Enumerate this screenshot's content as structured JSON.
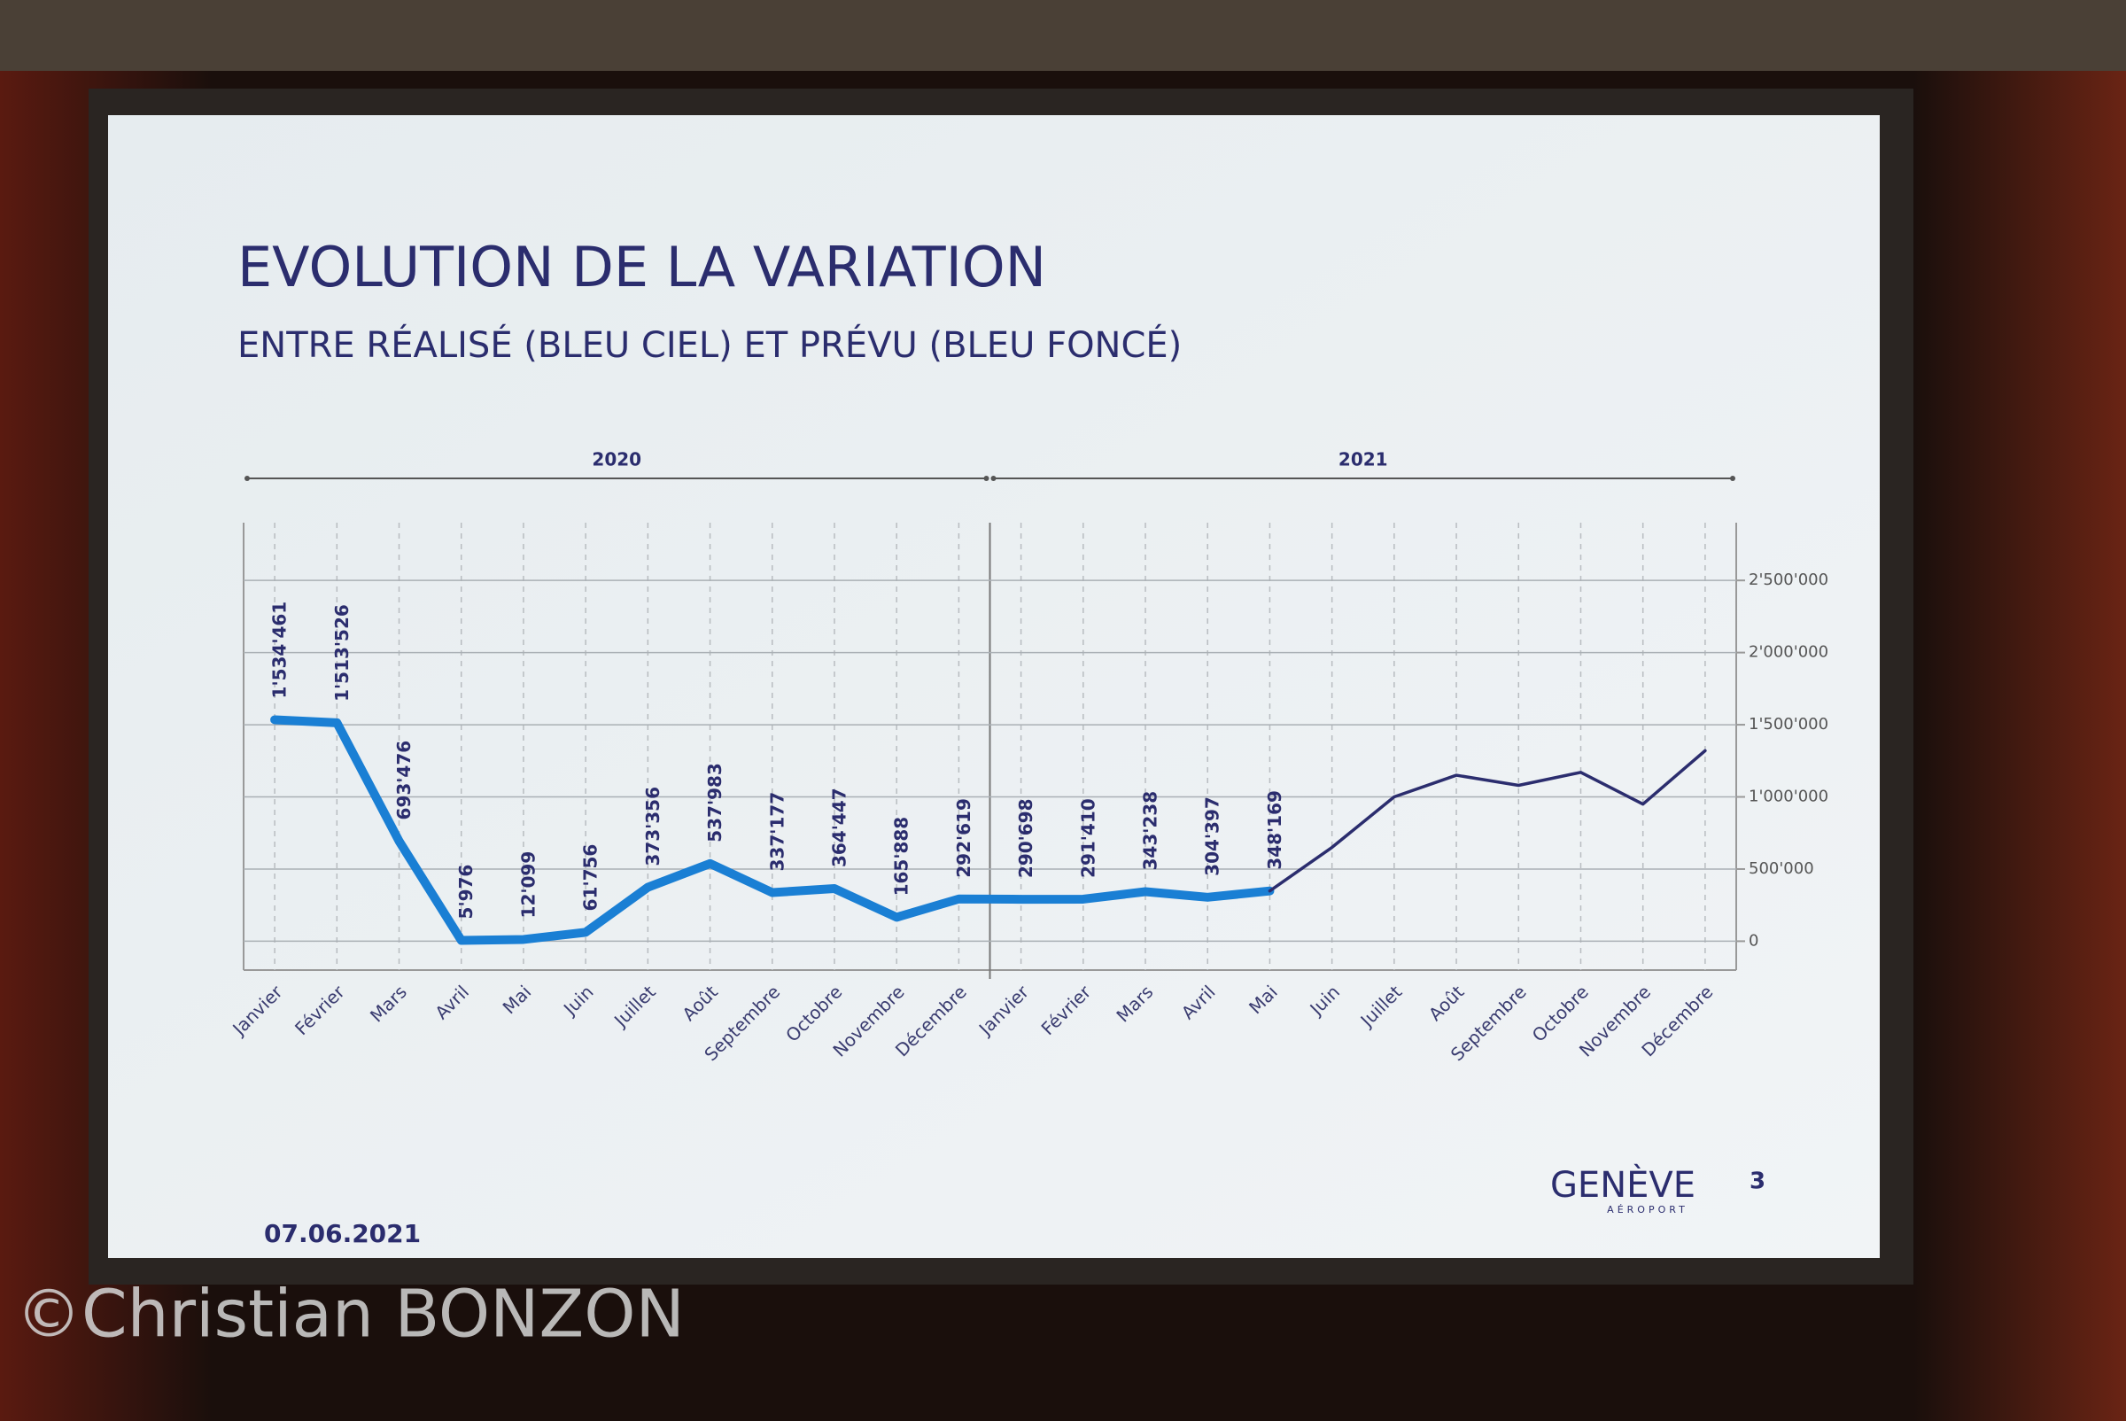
{
  "slide": {
    "title": "EVOLUTION DE LA VARIATION",
    "subtitle": "ENTRE RÉALISÉ (BLEU CIEL) ET PRÉVU (BLEU FONCÉ)",
    "date": "07.06.2021",
    "page_number": "3",
    "logo": "GENÈVE",
    "logo_sub": "AÉROPORT"
  },
  "watermark": "©Christian BONZON",
  "chart_data": {
    "type": "line",
    "period_labels": [
      "2020",
      "2021"
    ],
    "categories": [
      "Janvier",
      "Février",
      "Mars",
      "Avril",
      "Mai",
      "Juin",
      "Juillet",
      "Août",
      "Septembre",
      "Octobre",
      "Novembre",
      "Décembre",
      "Janvier",
      "Février",
      "Mars",
      "Avril",
      "Mai",
      "Juin",
      "Juillet",
      "Août",
      "Septembre",
      "Octobre",
      "Novembre",
      "Décembre"
    ],
    "series": [
      {
        "color": "#1a7fd4",
        "values": [
          1534461,
          1513526,
          693476,
          5976,
          12099,
          61756,
          373356,
          537983,
          337177,
          364447,
          165888,
          292619,
          290698,
          291410,
          343238,
          304397,
          348169,
          null,
          null,
          null,
          null,
          null,
          null,
          null
        ],
        "value_labels": [
          "1'534'461",
          "1'513'526",
          "693'476",
          "5'976",
          "12'099",
          "61'756",
          "373'356",
          "537'983",
          "337'177",
          "364'447",
          "165'888",
          "292'619",
          "290'698",
          "291'410",
          "343'238",
          "304'397",
          "348'169",
          null,
          null,
          null,
          null,
          null,
          null,
          null
        ]
      },
      {
        "color": "#2b2d6e",
        "values": [
          null,
          null,
          null,
          null,
          null,
          null,
          null,
          null,
          null,
          null,
          null,
          null,
          null,
          null,
          null,
          null,
          348169,
          650000,
          1000000,
          1150000,
          1080000,
          1170000,
          950000,
          1320000
        ]
      }
    ],
    "ylim": [
      -200000,
      2900000
    ],
    "yticks": [
      0,
      {
        "value": 500000,
        "label": "500'000"
      },
      {
        "value": 1000000,
        "label": "1'000'000"
      },
      {
        "value": 1500000,
        "label": "1'500'000"
      },
      {
        "value": 2000000,
        "label": "2'000'000"
      },
      {
        "value": 2500000,
        "label": "2'500'000"
      }
    ],
    "grid": true
  }
}
